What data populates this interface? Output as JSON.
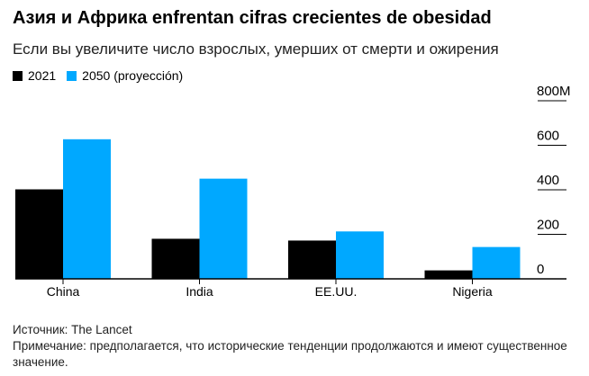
{
  "header": {
    "title": "Азия и Африка enfrentan cifras crecientes de obesidad",
    "subtitle": "Если вы увеличите число взрослых, умерших от смерти и ожирения"
  },
  "legend": [
    {
      "label": "2021",
      "color": "#000000"
    },
    {
      "label": "2050 (proyección)",
      "color": "#00a8ff"
    }
  ],
  "chart_data": {
    "type": "bar",
    "categories": [
      "China",
      "India",
      "EE.UU.",
      "Nigeria"
    ],
    "series": [
      {
        "name": "2021",
        "values": [
          402,
          180,
          172,
          38
        ],
        "color": "#000000"
      },
      {
        "name": "2050 (proyección)",
        "values": [
          627,
          450,
          213,
          143
        ],
        "color": "#00a8ff"
      }
    ],
    "ylim": [
      0,
      800
    ],
    "yticks": [
      0,
      200,
      400,
      600,
      800
    ],
    "ytick_labels": [
      "0",
      "200",
      "400",
      "600",
      "800M"
    ],
    "grid": false,
    "legend_position": "top-left"
  },
  "footer": {
    "source": "Источник: The Lancet",
    "note": "Примечание: предполагается, что исторические тенденции продолжаются и имеют существенное значение."
  }
}
